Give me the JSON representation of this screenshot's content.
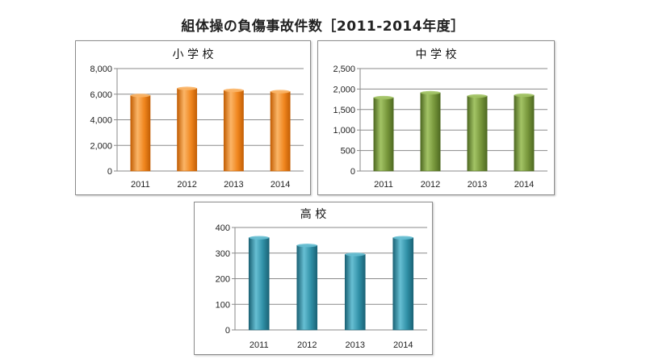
{
  "page": {
    "title": "組体操の負傷事故件数［2011-2014年度］"
  },
  "chart_data": [
    {
      "type": "bar",
      "title": "小 学 校",
      "categories": [
        "2011",
        "2012",
        "2013",
        "2014"
      ],
      "values": [
        5900,
        6450,
        6300,
        6200
      ],
      "ylim": [
        0,
        8000
      ],
      "yticks": [
        0,
        2000,
        4000,
        6000,
        8000
      ],
      "ytick_labels": [
        "0",
        "2,000",
        "4,000",
        "6,000",
        "8,000"
      ],
      "grid": true,
      "legend": "none",
      "color": "#f0861e",
      "color_light": "#fbb567",
      "color_dark": "#c35f05"
    },
    {
      "type": "bar",
      "title": "中 学 校",
      "categories": [
        "2011",
        "2012",
        "2013",
        "2014"
      ],
      "values": [
        1790,
        1910,
        1830,
        1850
      ],
      "ylim": [
        0,
        2500
      ],
      "yticks": [
        0,
        500,
        1000,
        1500,
        2000,
        2500
      ],
      "ytick_labels": [
        "0",
        "500",
        "1,000",
        "1,500",
        "2,000",
        "2,500"
      ],
      "grid": true,
      "legend": "none",
      "color": "#76953a",
      "color_light": "#a3c466",
      "color_dark": "#4f6a22"
    },
    {
      "type": "bar",
      "title": "高 校",
      "categories": [
        "2011",
        "2012",
        "2013",
        "2014"
      ],
      "values": [
        360,
        330,
        295,
        360
      ],
      "ylim": [
        0,
        400
      ],
      "yticks": [
        0,
        100,
        200,
        300,
        400
      ],
      "ytick_labels": [
        "0",
        "100",
        "200",
        "300",
        "400"
      ],
      "grid": true,
      "legend": "none",
      "color": "#2f8fa6",
      "color_light": "#67bfd3",
      "color_dark": "#1b6376"
    }
  ]
}
